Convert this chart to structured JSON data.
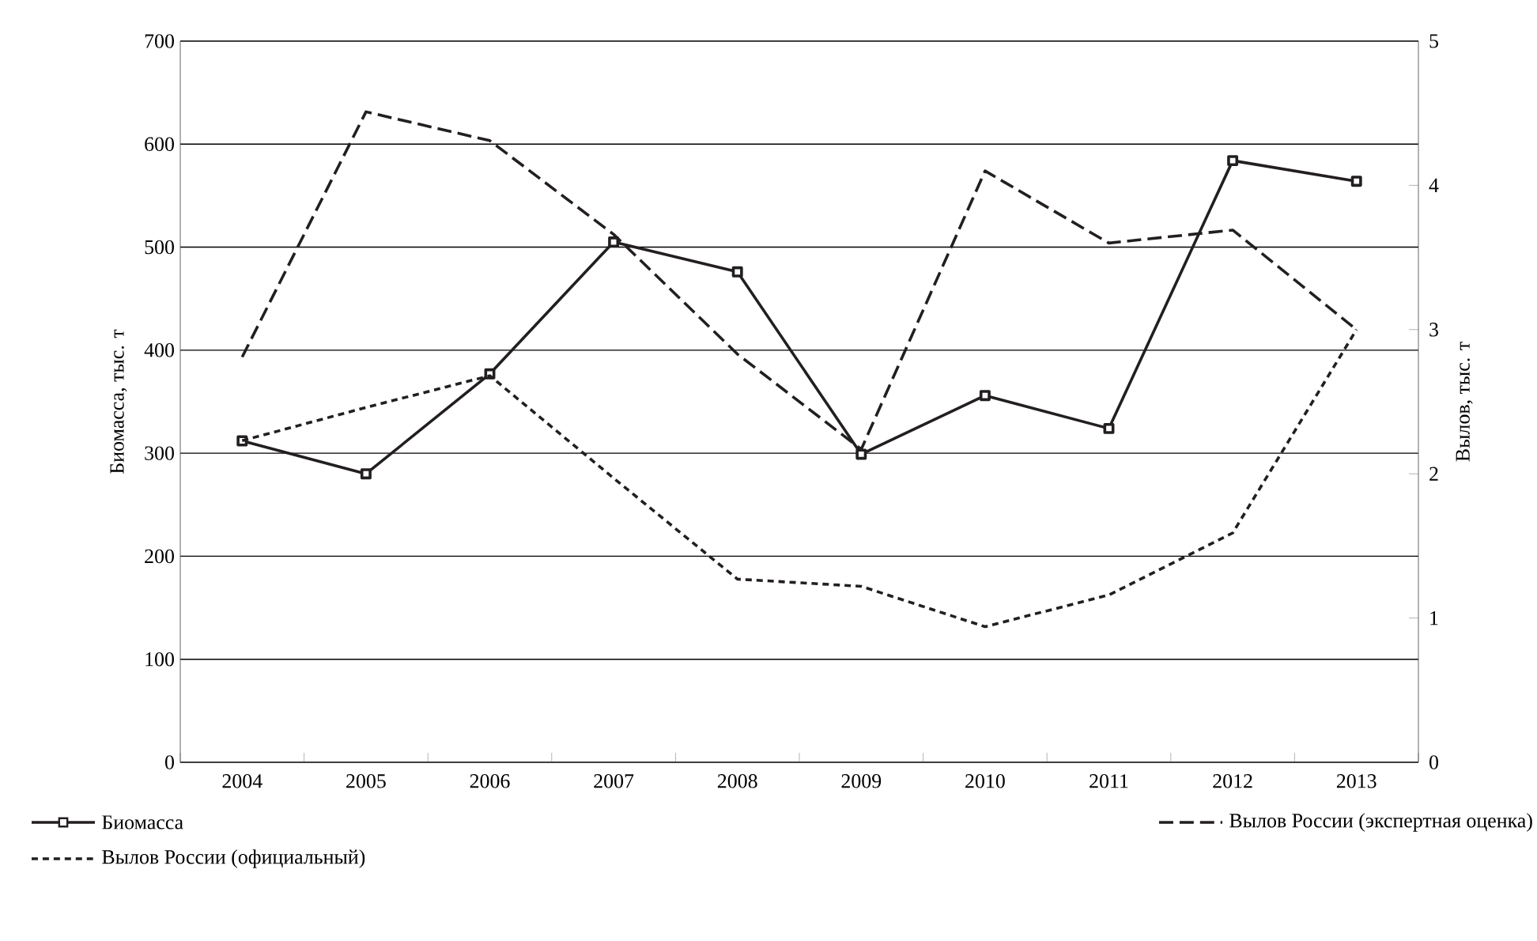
{
  "chart_data": {
    "type": "line",
    "ylabel": "Биомасса, тыс. т",
    "y2label": "Вылов, тыс. т",
    "categories": [
      "2004",
      "2005",
      "2006",
      "2007",
      "2008",
      "2009",
      "2010",
      "2011",
      "2012",
      "2013"
    ],
    "ylim": [
      0,
      700
    ],
    "yticks": [
      0,
      100,
      200,
      300,
      400,
      500,
      600,
      700
    ],
    "y2lim": [
      0,
      5
    ],
    "y2ticks": [
      0,
      1,
      2,
      3,
      4,
      5
    ],
    "grid": "y",
    "legend": "bottom",
    "series": [
      {
        "name": "Биомасса",
        "color": "#231f20",
        "marker": "square",
        "line_style": "solid",
        "values": [
          312,
          280,
          377,
          505,
          476,
          299,
          356,
          324,
          584,
          564
        ]
      },
      {
        "name": "Вылов России (экспертная оценка)",
        "color": "#231f20",
        "marker": "none",
        "line_style": "dashed",
        "axis": "y2",
        "values": [
          2.81,
          4.51,
          4.31,
          3.66,
          2.83,
          2.17,
          4.1,
          3.6,
          3.69,
          3.0
        ]
      },
      {
        "name": "Вылов России (официальный)",
        "color": "#231f20",
        "marker": "none",
        "line_style": "dotted",
        "axis": "y2",
        "values": [
          2.23,
          2.46,
          2.68,
          1.97,
          1.27,
          1.22,
          0.94,
          1.16,
          1.59,
          3.0
        ]
      }
    ]
  }
}
